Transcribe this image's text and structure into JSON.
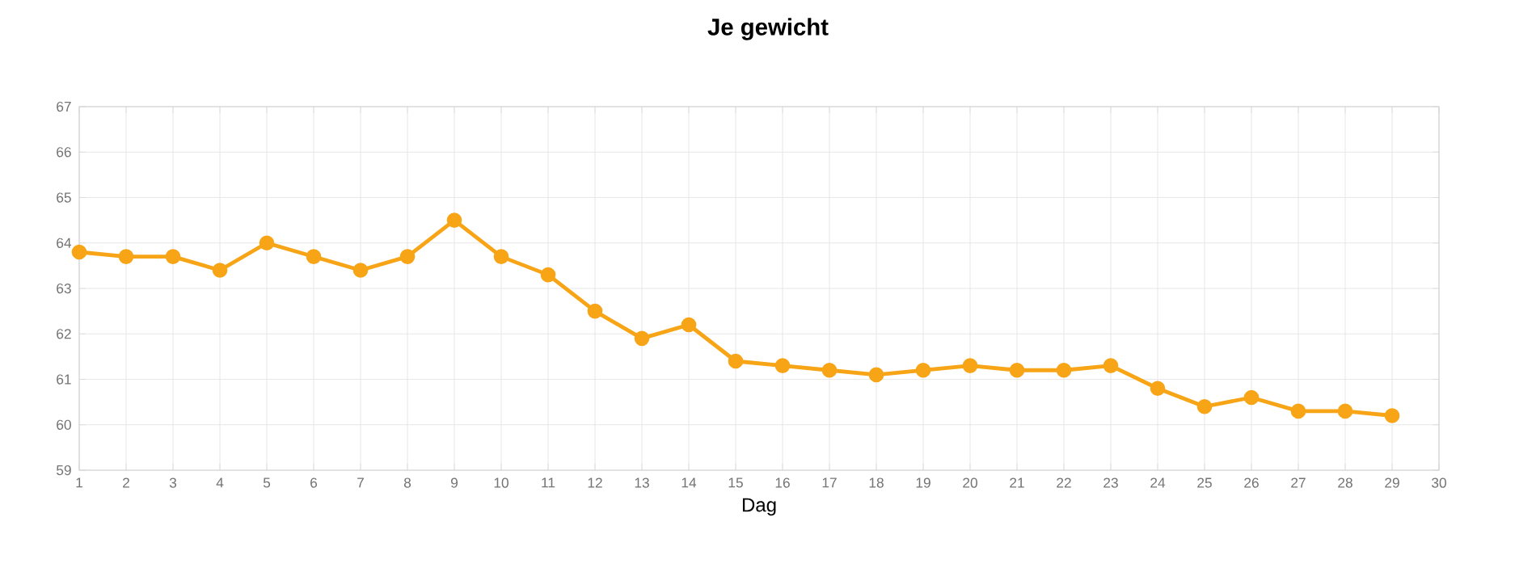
{
  "chart_data": {
    "type": "line",
    "title": "Je gewicht",
    "xlabel": "Dag",
    "x": [
      1,
      2,
      3,
      4,
      5,
      6,
      7,
      8,
      9,
      10,
      11,
      12,
      13,
      14,
      15,
      16,
      17,
      18,
      19,
      20,
      21,
      22,
      23,
      24,
      25,
      26,
      27,
      28,
      29
    ],
    "values": [
      63.8,
      63.7,
      63.7,
      63.4,
      64.0,
      63.7,
      63.4,
      63.7,
      64.5,
      63.7,
      63.3,
      62.5,
      61.9,
      62.2,
      61.4,
      61.3,
      61.2,
      61.1,
      61.2,
      61.3,
      61.2,
      61.2,
      61.3,
      60.8,
      60.4,
      60.6,
      60.3,
      60.3,
      60.2
    ],
    "color": "#f7a416",
    "xlim": [
      1,
      30
    ],
    "xticks": [
      1,
      2,
      3,
      4,
      5,
      6,
      7,
      8,
      9,
      10,
      11,
      12,
      13,
      14,
      15,
      16,
      17,
      18,
      19,
      20,
      21,
      22,
      23,
      24,
      25,
      26,
      27,
      28,
      29,
      30
    ],
    "ylim": [
      59,
      67
    ],
    "yticks": [
      59,
      60,
      61,
      62,
      63,
      64,
      65,
      66,
      67
    ],
    "grid": true,
    "marker": "circle",
    "line_style": "solid"
  }
}
